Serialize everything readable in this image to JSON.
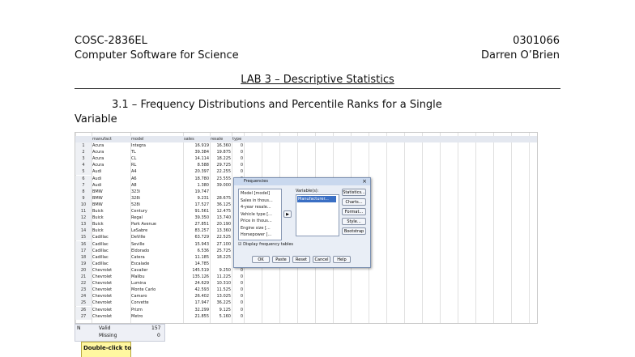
{
  "header": {
    "course_code": "COSC-2836EL",
    "course_name": "Computer Software for Science",
    "student_id": "0301066",
    "student_name": "Darren O’Brien"
  },
  "title": "LAB 3 – Descriptive Statistics",
  "section": {
    "line1": "3.1 – Frequency Distributions and Percentile Ranks for a Single",
    "line2": "Variable"
  },
  "data_view": {
    "columns": [
      "manufact",
      "model",
      "sales",
      "resale",
      "type"
    ],
    "rows": [
      [
        "1",
        "Acura",
        "Integra",
        "16.919",
        "16.360",
        "0"
      ],
      [
        "2",
        "Acura",
        "TL",
        "39.384",
        "19.875",
        "0"
      ],
      [
        "3",
        "Acura",
        "CL",
        "14.114",
        "18.225",
        "0"
      ],
      [
        "4",
        "Acura",
        "RL",
        "8.588",
        "29.725",
        "0"
      ],
      [
        "5",
        "Audi",
        "A4",
        "20.397",
        "22.255",
        "0"
      ],
      [
        "6",
        "Audi",
        "A6",
        "18.780",
        "23.555",
        "0"
      ],
      [
        "7",
        "Audi",
        "A8",
        "1.380",
        "39.000",
        "0"
      ],
      [
        "8",
        "BMW",
        "323i",
        "19.747",
        null,
        "0"
      ],
      [
        "9",
        "BMW",
        "328i",
        "9.231",
        "28.675",
        "0"
      ],
      [
        "10",
        "BMW",
        "528i",
        "17.527",
        "36.125",
        "0"
      ],
      [
        "11",
        "Buick",
        "Century",
        "91.561",
        "12.475",
        "0"
      ],
      [
        "12",
        "Buick",
        "Regal",
        "39.350",
        "13.740",
        "0"
      ],
      [
        "13",
        "Buick",
        "Park Avenue",
        "27.851",
        "20.190",
        "0"
      ],
      [
        "14",
        "Buick",
        "LeSabre",
        "83.257",
        "13.360",
        "0"
      ],
      [
        "15",
        "Cadillac",
        "DeVille",
        "63.729",
        "22.525",
        "0"
      ],
      [
        "16",
        "Cadillac",
        "Seville",
        "15.943",
        "27.100",
        "0"
      ],
      [
        "17",
        "Cadillac",
        "Eldorado",
        "6.536",
        "25.725",
        "0"
      ],
      [
        "18",
        "Cadillac",
        "Catera",
        "11.185",
        "18.225",
        "0"
      ],
      [
        "19",
        "Cadillac",
        "Escalade",
        "14.785",
        null,
        "1"
      ],
      [
        "20",
        "Chevrolet",
        "Cavalier",
        "145.519",
        "9.250",
        "0"
      ],
      [
        "21",
        "Chevrolet",
        "Malibu",
        "135.126",
        "11.225",
        "0"
      ],
      [
        "22",
        "Chevrolet",
        "Lumina",
        "24.629",
        "10.310",
        "0"
      ],
      [
        "23",
        "Chevrolet",
        "Monte Carlo",
        "42.593",
        "11.525",
        "0"
      ],
      [
        "24",
        "Chevrolet",
        "Camaro",
        "26.402",
        "13.025",
        "0"
      ],
      [
        "25",
        "Chevrolet",
        "Corvette",
        "17.947",
        "36.225",
        "0"
      ],
      [
        "26",
        "Chevrolet",
        "Prizm",
        "32.299",
        "9.125",
        "0"
      ],
      [
        "27",
        "Chevrolet",
        "Metro",
        "21.855",
        "5.160",
        "0"
      ]
    ]
  },
  "dialog": {
    "title": "Frequencies",
    "variables": [
      "Model [model]",
      "Sales in thous...",
      "4-year resale...",
      "Vehicle type [...",
      "Price in thous...",
      "Engine size [...",
      "Horsepower [..."
    ],
    "selected_label": "Variable(s):",
    "selected": [
      "Manufacturer..."
    ],
    "side_buttons": [
      "Statistics...",
      "Charts...",
      "Format...",
      "Style...",
      "Bootstrap"
    ],
    "checkbox": "Display frequency tables",
    "bottom_buttons": [
      "OK",
      "Paste",
      "Reset",
      "Cancel",
      "Help"
    ]
  },
  "stats_table": {
    "n": "N",
    "valid": "Valid",
    "valid_value": "157",
    "missing": "Missing",
    "missing_value": "0",
    "tooltip": "Double-click to"
  }
}
